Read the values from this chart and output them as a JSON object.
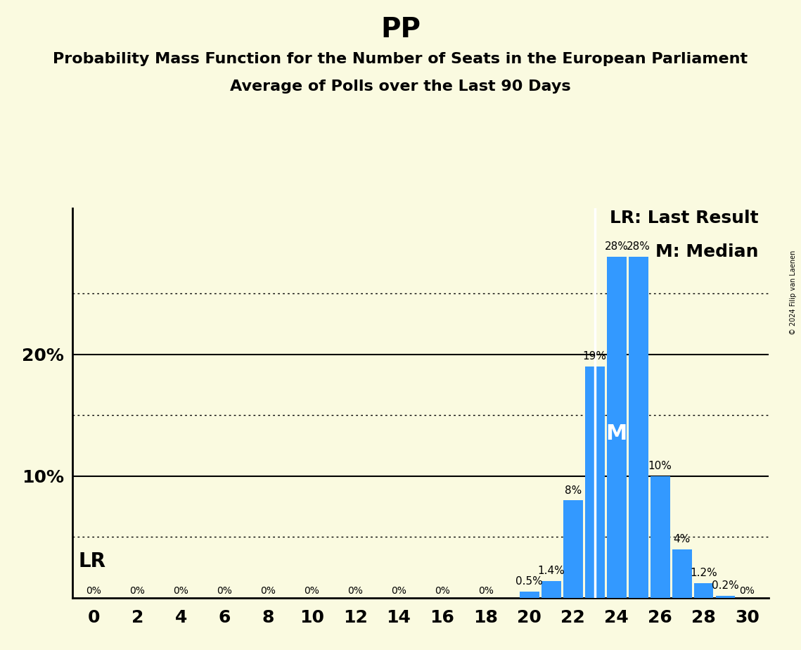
{
  "title": "PP",
  "subtitle1": "Probability Mass Function for the Number of Seats in the European Parliament",
  "subtitle2": "Average of Polls over the Last 90 Days",
  "background_color": "#FAFAE0",
  "bar_color": "#3399FF",
  "seats": [
    0,
    1,
    2,
    3,
    4,
    5,
    6,
    7,
    8,
    9,
    10,
    11,
    12,
    13,
    14,
    15,
    16,
    17,
    18,
    19,
    20,
    21,
    22,
    23,
    24,
    25,
    26,
    27,
    28,
    29,
    30
  ],
  "probabilities": [
    0.0,
    0.0,
    0.0,
    0.0,
    0.0,
    0.0,
    0.0,
    0.0,
    0.0,
    0.0,
    0.0,
    0.0,
    0.0,
    0.0,
    0.0,
    0.0,
    0.0,
    0.0,
    0.0,
    0.0,
    0.5,
    1.4,
    8.0,
    19.0,
    28.0,
    28.0,
    10.0,
    4.0,
    1.2,
    0.2,
    0.0
  ],
  "labels": [
    0,
    2,
    4,
    6,
    8,
    10,
    12,
    14,
    16,
    18,
    20,
    22,
    24,
    26,
    28,
    30
  ],
  "ylim": [
    0,
    32
  ],
  "solid_gridlines": [
    10,
    20
  ],
  "dotted_gridlines": [
    5,
    15,
    25
  ],
  "last_result_seat": 23,
  "median_seat": 24,
  "legend_lr": "LR: Last Result",
  "legend_m": "M: Median",
  "watermark": "© 2024 Filip van Laenen",
  "lr_label": "LR",
  "median_label": "M",
  "title_fontsize": 28,
  "subtitle_fontsize": 16,
  "axis_tick_fontsize": 18,
  "bar_label_fontsize": 11,
  "legend_fontsize": 18,
  "lr_label_fontsize": 20,
  "bar_width": 0.9
}
